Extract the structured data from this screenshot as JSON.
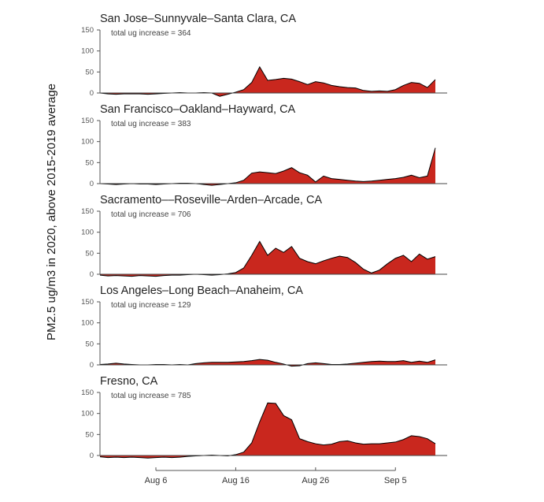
{
  "figure": {
    "y_axis_label": "PM2.5 ug/m3 in 2020, above 2015-2019 average",
    "y_ticks": [
      0,
      50,
      100,
      150
    ],
    "x_axis": {
      "tick_labels": [
        "Aug 6",
        "Aug 16",
        "Aug 26",
        "Sep 5"
      ],
      "tick_day_index": [
        7,
        17,
        27,
        37
      ],
      "start_date": "Jul 30",
      "end_date": "Sep 10"
    },
    "colors": {
      "area_fill": "#C9271E",
      "data_line": "#000000",
      "axis": "#555555",
      "title_text": "#222222",
      "subtitle_text": "#444444",
      "tick_text": "#555555",
      "background": "#FFFFFF"
    }
  },
  "chart_data": [
    {
      "type": "area",
      "title": "San Jose–Sunnyvale–Santa Clara, CA",
      "subtitle": "total ug increase = 364",
      "total_ug_increase": 364,
      "ylabel": "PM2.5 ug/m3 in 2020, above 2015-2019 average",
      "ylim": [
        -10,
        150
      ],
      "values": [
        0,
        -2,
        -3,
        -2,
        -2,
        -2,
        -3,
        -2,
        -1,
        0,
        1,
        0,
        0,
        1,
        0,
        -8,
        -3,
        2,
        8,
        25,
        62,
        30,
        32,
        35,
        33,
        27,
        20,
        27,
        24,
        18,
        15,
        13,
        12,
        6,
        4,
        5,
        4,
        8,
        18,
        25,
        23,
        13,
        32
      ]
    },
    {
      "type": "area",
      "title": "San Francisco–Oakland–Hayward, CA",
      "subtitle": "total ug increase = 383",
      "total_ug_increase": 383,
      "ylabel": "PM2.5 ug/m3 in 2020, above 2015-2019 average",
      "ylim": [
        -10,
        150
      ],
      "values": [
        0,
        -1,
        -2,
        -1,
        0,
        -1,
        -1,
        -2,
        -1,
        0,
        1,
        1,
        0,
        -2,
        -4,
        -2,
        0,
        2,
        8,
        25,
        28,
        26,
        24,
        30,
        38,
        26,
        20,
        4,
        18,
        12,
        10,
        8,
        6,
        5,
        6,
        8,
        10,
        12,
        15,
        20,
        14,
        18,
        85
      ]
    },
    {
      "type": "area",
      "title": "Sacramento––Roseville–Arden–Arcade, CA",
      "subtitle": "total ug increase = 706",
      "total_ug_increase": 706,
      "ylabel": "PM2.5 ug/m3 in 2020, above 2015-2019 average",
      "ylim": [
        -10,
        150
      ],
      "values": [
        -2,
        -4,
        -3,
        -4,
        -5,
        -3,
        -4,
        -5,
        -3,
        -2,
        -2,
        -1,
        0,
        -1,
        -2,
        -1,
        1,
        4,
        15,
        45,
        78,
        45,
        62,
        52,
        66,
        38,
        30,
        25,
        32,
        38,
        43,
        40,
        28,
        12,
        3,
        10,
        25,
        38,
        45,
        30,
        48,
        36,
        42
      ]
    },
    {
      "type": "area",
      "title": "Los Angeles–Long Beach–Anaheim, CA",
      "subtitle": "total ug increase = 129",
      "total_ug_increase": 129,
      "ylabel": "PM2.5 ug/m3 in 2020, above 2015-2019 average",
      "ylim": [
        -10,
        150
      ],
      "values": [
        1,
        2,
        4,
        2,
        1,
        0,
        0,
        1,
        1,
        0,
        1,
        0,
        3,
        5,
        6,
        6,
        6,
        7,
        8,
        10,
        13,
        11,
        6,
        2,
        -3,
        -2,
        3,
        5,
        3,
        1,
        1,
        2,
        4,
        6,
        8,
        9,
        8,
        8,
        10,
        6,
        9,
        6,
        12
      ]
    },
    {
      "type": "area",
      "title": "Fresno, CA",
      "subtitle": "total ug increase = 785",
      "total_ug_increase": 785,
      "ylabel": "PM2.5 ug/m3 in 2020, above 2015-2019 average",
      "ylim": [
        -10,
        150
      ],
      "values": [
        -3,
        -5,
        -4,
        -5,
        -4,
        -5,
        -6,
        -5,
        -4,
        -5,
        -4,
        -2,
        -1,
        0,
        1,
        0,
        -1,
        2,
        8,
        30,
        80,
        125,
        124,
        95,
        85,
        40,
        33,
        28,
        25,
        27,
        33,
        35,
        30,
        27,
        28,
        28,
        30,
        32,
        38,
        47,
        45,
        40,
        28
      ]
    }
  ]
}
